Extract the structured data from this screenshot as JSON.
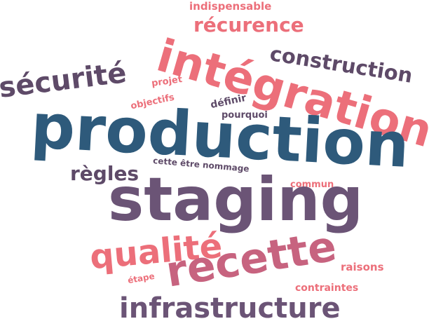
{
  "words": {
    "production": "production",
    "staging": "staging",
    "integration": "intégration",
    "infrastructure": "infrastructure",
    "recette": "recette",
    "securite": "sécurité",
    "qualite": "qualité",
    "construction": "construction",
    "recurence": "récurence",
    "regles": "règles",
    "indispensable": "indispensable",
    "projet": "projet",
    "objectifs": "objectifs",
    "definir": "définir",
    "pourquoi": "pourquoi",
    "cette_etre_nommage": "cette être nommage",
    "commun": "commun",
    "raisons": "raisons",
    "etape": "étape",
    "contraintes": "contraintes"
  },
  "colors": {
    "blue": "#2e5a7b",
    "purple": "#6b5476",
    "plum": "#5e4a68",
    "pink": "#ec6f7a",
    "rose": "#c7637f"
  }
}
